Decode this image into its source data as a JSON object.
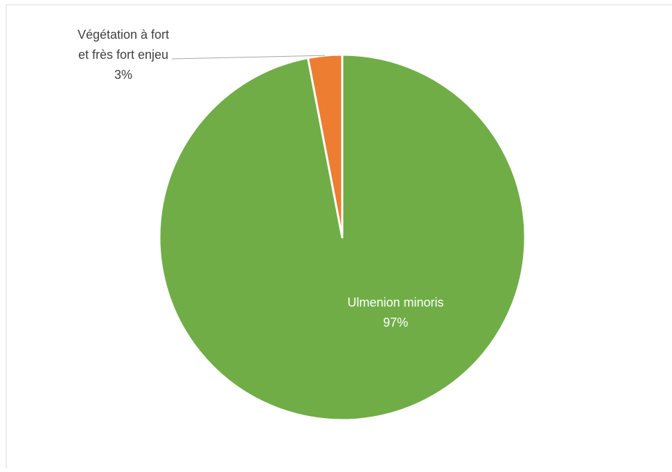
{
  "chart_data": {
    "type": "pie",
    "title": "",
    "slices": [
      {
        "label": "Ulmenion minoris",
        "percent_label": "97%",
        "value": 97,
        "color": "#70AD47"
      },
      {
        "label_lines": [
          "Végétation à fort",
          "et frès fort enjeu"
        ],
        "percent_label": "3%",
        "value": 3,
        "color": "#ED7D31"
      }
    ],
    "start_angle_deg": 0,
    "direction": "clockwise",
    "legend": "none"
  }
}
